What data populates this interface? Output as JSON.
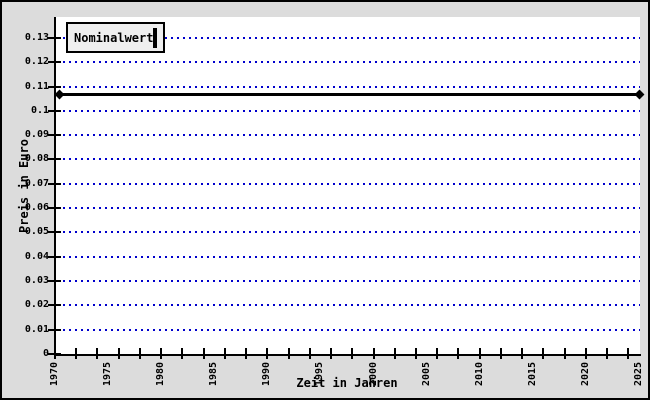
{
  "window": {
    "background_color": "#dcdcdc",
    "border_color": "#000000"
  },
  "chart_data": {
    "type": "line",
    "title": "",
    "xlabel": "Zeit in Jahren",
    "ylabel": "Preis in Euro",
    "x_range": [
      1970,
      2025
    ],
    "y_range": [
      0,
      0.1386
    ],
    "x_label_years": [
      1970,
      1975,
      1980,
      1985,
      1990,
      1995,
      2000,
      2005,
      2010,
      2015,
      2020,
      2025
    ],
    "x_minor_tick_years": [
      1970,
      1972,
      1974,
      1976,
      1978,
      1980,
      1982,
      1984,
      1986,
      1988,
      1990,
      1992,
      1994,
      1996,
      1998,
      2000,
      2002,
      2004,
      2006,
      2008,
      2010,
      2012,
      2014,
      2016,
      2018,
      2020,
      2022,
      2024
    ],
    "y_tick_labels": [
      "0",
      "0.01",
      "0.02",
      "0.03",
      "0.04",
      "0.05",
      "0.06",
      "0.07",
      "0.08",
      "0.09",
      "0.1",
      "0.11",
      "0.12",
      "0.13"
    ],
    "y_tick_step": 0.01,
    "grid": {
      "orientation": "horizontal",
      "style": "dotted",
      "color": "#0000cc",
      "values": [
        0.01,
        0.02,
        0.03,
        0.04,
        0.05,
        0.06,
        0.07,
        0.08,
        0.09,
        0.1,
        0.11,
        0.12,
        0.13
      ]
    },
    "legend": {
      "label": "Nominalwert",
      "position": "top-left",
      "swatch_color": "#000000"
    },
    "series": [
      {
        "name": "Nominalwert",
        "x": [
          1970,
          2025
        ],
        "y": [
          0.107,
          0.107
        ],
        "color": "#000000",
        "line_width": 3,
        "marker": "diamond"
      }
    ]
  }
}
